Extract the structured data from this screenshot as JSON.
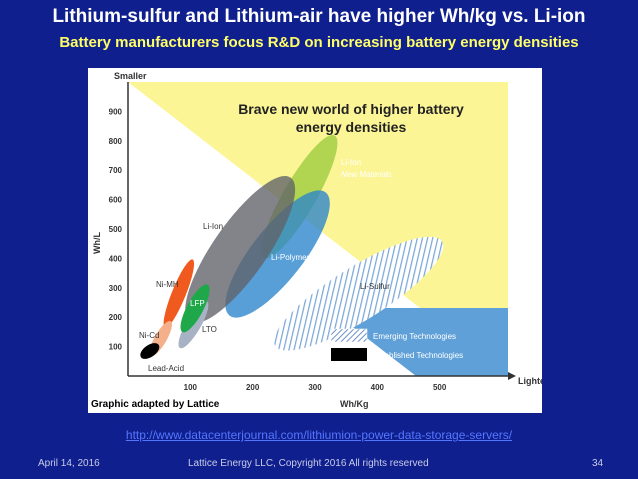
{
  "slide": {
    "title": "Lithium-sulfur and Lithium-air have higher Wh/kg vs. Li-ion",
    "subtitle": "Battery manufacturers focus R&D on increasing battery energy densities",
    "credit": "Graphic adapted by Lattice",
    "source_url": "http://www.datacenterjournal.com/lithiumion-power-data-storage-servers/",
    "footer_date": "April 14, 2016",
    "footer_copyright": "Lattice Energy LLC, Copyright 2016  All rights reserved",
    "page_number": "34"
  },
  "chart_data": {
    "type": "scatter",
    "xlabel": "Wh/Kg",
    "ylabel": "Wh/L",
    "x_ticks": [
      100,
      200,
      300,
      400,
      500
    ],
    "y_ticks": [
      100,
      200,
      300,
      400,
      500,
      600,
      700,
      800,
      900
    ],
    "xlim": [
      0,
      600
    ],
    "ylim": [
      0,
      1000
    ],
    "y_axis_top_label": "Smaller",
    "x_axis_end_label": "Lighter",
    "annotation": {
      "line1": "Brave new world of higher battery",
      "line2": "energy densities"
    },
    "legend": [
      {
        "label": "Emerging Technologies",
        "pattern": "hatched"
      },
      {
        "label": "Established Technologies",
        "pattern": "solid"
      }
    ],
    "series": [
      {
        "name": "Lead-Acid",
        "status": "established",
        "color": "#000000",
        "x_range": [
          25,
          45
        ],
        "y_range": [
          55,
          115
        ]
      },
      {
        "name": "Ni-Cd",
        "status": "established",
        "color": "#f4b08a",
        "x_range": [
          40,
          65
        ],
        "y_range": [
          65,
          190
        ]
      },
      {
        "name": "Ni-MH",
        "status": "established",
        "color": "#f05a1e",
        "x_range": [
          58,
          105
        ],
        "y_range": [
          165,
          395
        ]
      },
      {
        "name": "LFP",
        "status": "established",
        "color": "#1fa84a",
        "x_range": [
          80,
          135
        ],
        "y_range": [
          160,
          300
        ]
      },
      {
        "name": "LTO",
        "status": "established",
        "color": "#a7b3c4",
        "x_range": [
          80,
          130
        ],
        "y_range": [
          100,
          250
        ]
      },
      {
        "name": "Li-Ion",
        "status": "established",
        "color": "#5f6268",
        "x_range": [
          90,
          270
        ],
        "y_range": [
          200,
          660
        ]
      },
      {
        "name": "Li-Polymer",
        "status": "established",
        "color": "#2a84cc",
        "x_range": [
          150,
          330
        ],
        "y_range": [
          230,
          600
        ]
      },
      {
        "name": "Li-Ion New Materials",
        "status": "emerging",
        "color": "#9ccc3c",
        "x_range": [
          220,
          330
        ],
        "y_range": [
          400,
          820
        ]
      },
      {
        "name": "Li-Sulfur",
        "status": "emerging",
        "color": "#7aa7d8",
        "x_range": [
          240,
          500
        ],
        "y_range": [
          90,
          470
        ]
      }
    ],
    "series_labels": {
      "lead_acid": "Lead-Acid",
      "ni_cd": "Ni-Cd",
      "ni_mh": "Ni-MH",
      "lfp": "LFP",
      "lto": "LTO",
      "li_ion": "Li-Ion",
      "li_polymer": "Li-Polymer",
      "li_ion_new_1": "Li-Ion",
      "li_ion_new_2": "New Materials",
      "li_sulfur": "Li-Sulfur"
    },
    "colors": {
      "zone": "#fbf595",
      "established_panel": "#5fa0d8",
      "background": "#0f1f8e"
    }
  }
}
